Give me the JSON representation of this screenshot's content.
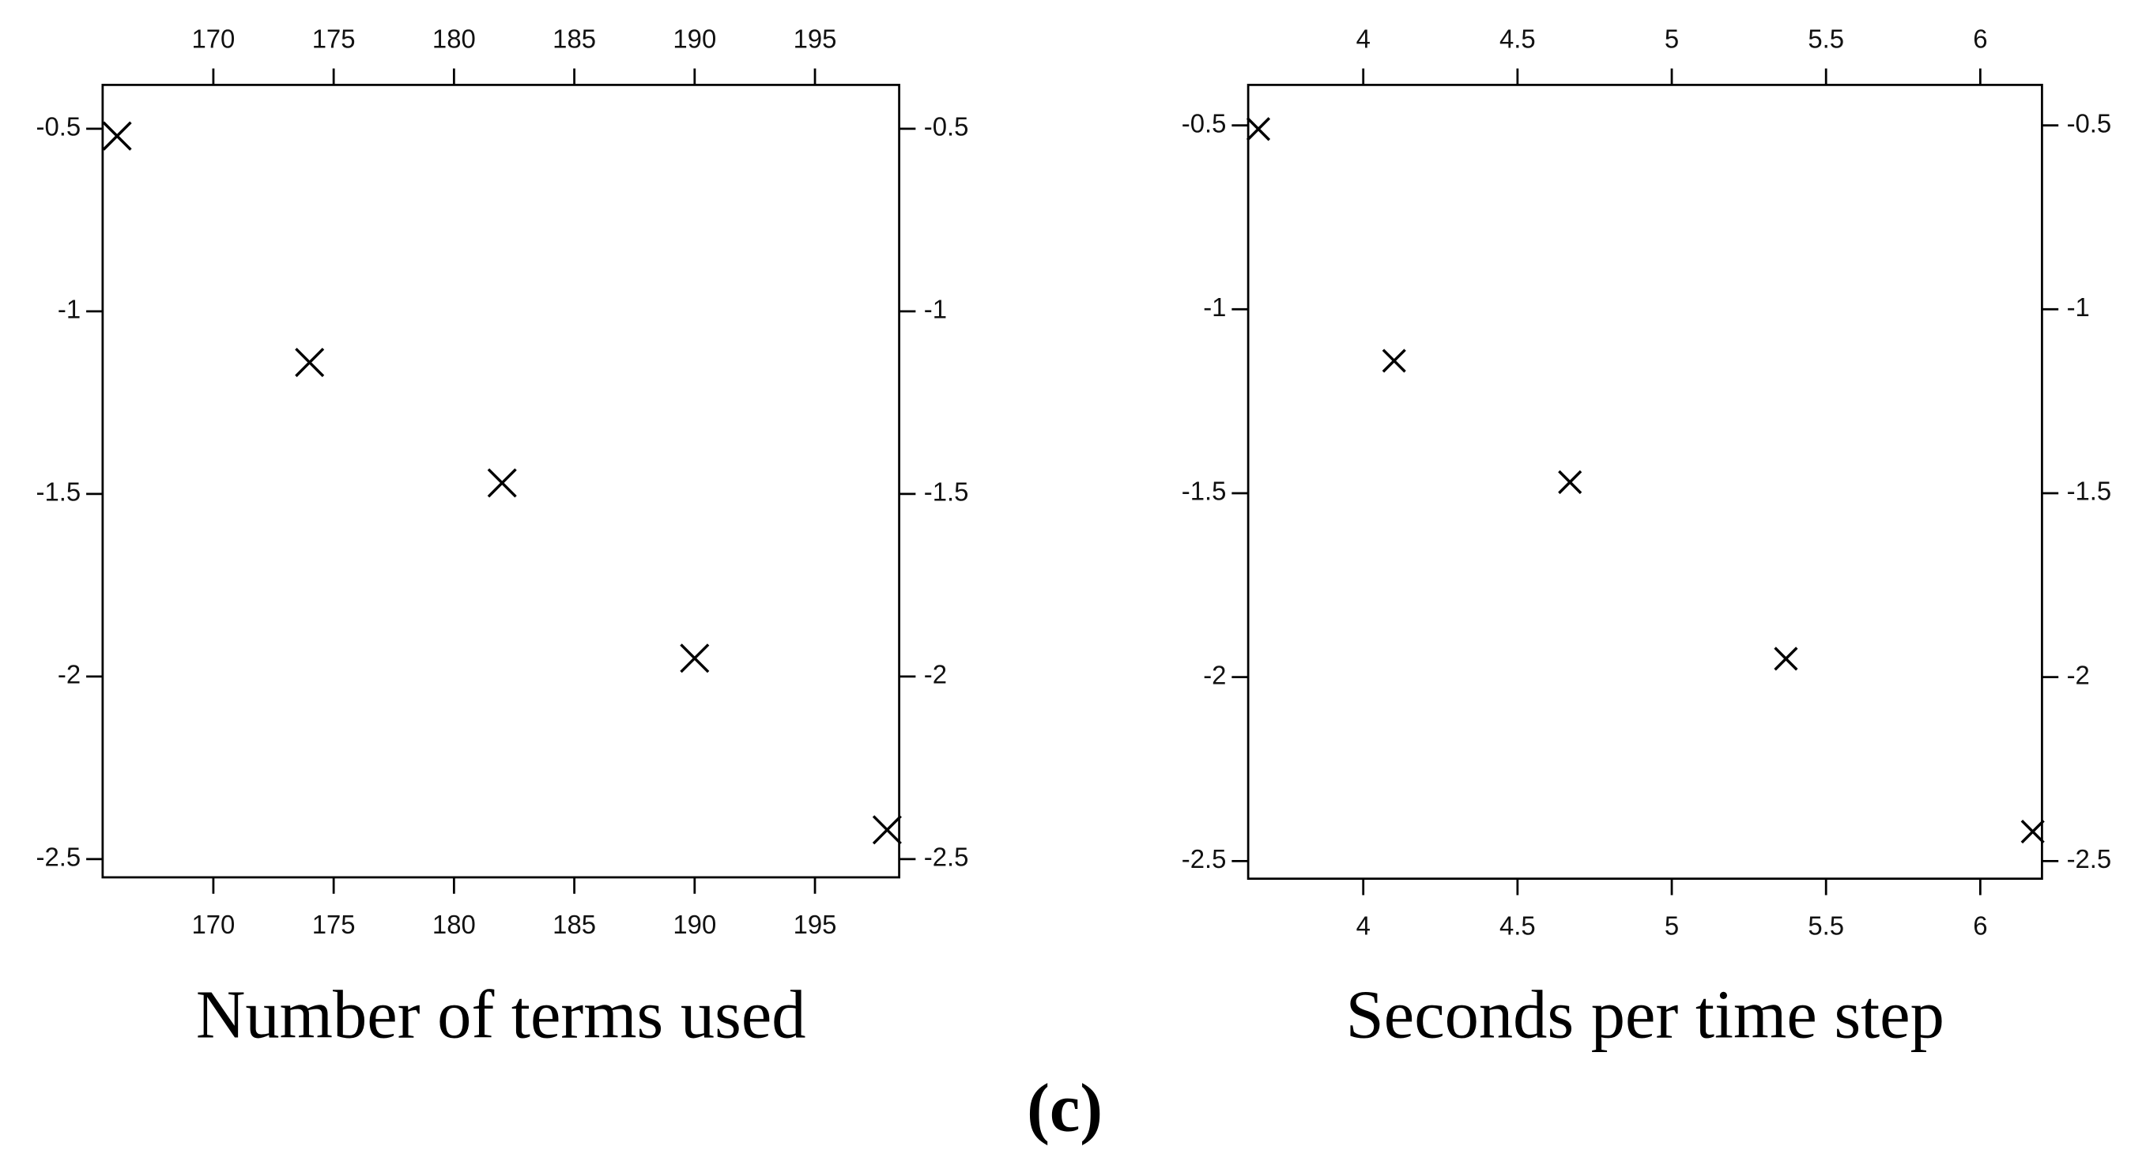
{
  "chart_data": [
    {
      "type": "scatter",
      "x_label": "Number of terms used",
      "x": [
        166,
        174,
        182,
        190,
        198
      ],
      "values": [
        -0.52,
        -1.14,
        -1.47,
        -1.95,
        -2.42
      ],
      "xlim": [
        165.4,
        198.5
      ],
      "ylim": [
        -2.55,
        -0.38
      ],
      "xticks": [
        170,
        175,
        180,
        185,
        190,
        195
      ],
      "yticks": [
        -0.5,
        -1,
        -1.5,
        -2,
        -2.5
      ],
      "color": "#000000"
    },
    {
      "type": "scatter",
      "x_label": "Seconds per time step",
      "x": [
        3.66,
        4.1,
        4.67,
        5.37,
        6.17
      ],
      "values": [
        -0.51,
        -1.14,
        -1.47,
        -1.95,
        -2.42
      ],
      "xlim": [
        3.627,
        6.2
      ],
      "ylim": [
        -2.548,
        -0.39
      ],
      "xticks": [
        4,
        4.5,
        5,
        5.5,
        6
      ],
      "yticks": [
        -0.5,
        -1,
        -1.5,
        -2,
        -2.5
      ],
      "color": "#000000"
    }
  ],
  "caption": "(c)"
}
